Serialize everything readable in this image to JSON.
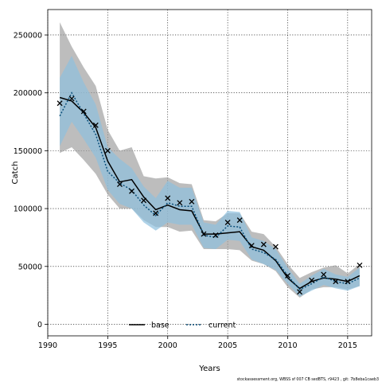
{
  "chart_data": {
    "type": "line",
    "xlabel": "Years",
    "ylabel": "Catch",
    "xlim": [
      1990,
      2017
    ],
    "ylim": [
      -10000,
      272000
    ],
    "xticks": [
      1990,
      1995,
      2000,
      2005,
      2010,
      2015
    ],
    "yticks": [
      0,
      50000,
      100000,
      150000,
      200000,
      250000
    ],
    "grid": true,
    "legend_position": "bottom-center",
    "x": [
      1991,
      1992,
      1993,
      1994,
      1995,
      1996,
      1997,
      1998,
      1999,
      2000,
      2001,
      2002,
      2003,
      2004,
      2005,
      2006,
      2007,
      2008,
      2009,
      2010,
      2011,
      2012,
      2013,
      2014,
      2015,
      2016
    ],
    "observed": {
      "marker": "x",
      "values": [
        191000,
        195000,
        184000,
        172000,
        150000,
        121000,
        115000,
        107000,
        96000,
        109000,
        105000,
        106000,
        78000,
        77000,
        88000,
        90000,
        68000,
        69000,
        67000,
        42000,
        28000,
        38000,
        43000,
        37000,
        37000,
        51000
      ]
    },
    "series": [
      {
        "name": "base",
        "line_style": "solid",
        "color": "#000000",
        "band_color": "#999999",
        "values": [
          196000,
          193000,
          183000,
          170000,
          141000,
          123000,
          125000,
          110000,
          99000,
          103000,
          99000,
          98000,
          78000,
          78000,
          79000,
          80000,
          67000,
          64000,
          55000,
          40000,
          31000,
          37000,
          40000,
          39000,
          37000,
          42000
        ],
        "band_low": [
          148000,
          153000,
          142000,
          130000,
          112000,
          100000,
          100000,
          90000,
          84000,
          84000,
          80000,
          81000,
          65000,
          65000,
          65000,
          64000,
          55000,
          52000,
          46000,
          32000,
          23000,
          30000,
          32000,
          32000,
          30000,
          33000
        ],
        "band_high": [
          261000,
          240000,
          222000,
          206000,
          168000,
          150000,
          153000,
          128000,
          126000,
          127000,
          122000,
          121000,
          90000,
          89000,
          96000,
          96000,
          80000,
          78000,
          67000,
          52000,
          40000,
          45000,
          49000,
          51000,
          44000,
          52000
        ]
      },
      {
        "name": "current",
        "line_style": "dotted",
        "color": "#0a4f7a",
        "band_color": "#8ec1de",
        "values": [
          180000,
          200000,
          182000,
          164000,
          132000,
          122000,
          116000,
          103000,
          94000,
          105000,
          102000,
          102000,
          77000,
          75000,
          85000,
          84000,
          65000,
          62000,
          56000,
          42000,
          30000,
          35000,
          41000,
          37000,
          35000,
          40000
        ],
        "band_low": [
          154000,
          175000,
          160000,
          144000,
          116000,
          104000,
          100000,
          88000,
          81000,
          88000,
          86000,
          86000,
          66000,
          65000,
          73000,
          72000,
          56000,
          52000,
          47000,
          35000,
          24000,
          29000,
          34000,
          31000,
          29000,
          33000
        ],
        "band_high": [
          213000,
          232000,
          209000,
          190000,
          153000,
          143000,
          135000,
          119000,
          109000,
          124000,
          118000,
          118000,
          88000,
          86000,
          98000,
          97000,
          75000,
          72000,
          65000,
          49000,
          35000,
          42000,
          48000,
          43000,
          41000,
          49000
        ]
      }
    ]
  },
  "footer": "stockassessment.org, WBSS sf 007 CB sedBTS, r9423 , git: 7b8eba1caeb3"
}
